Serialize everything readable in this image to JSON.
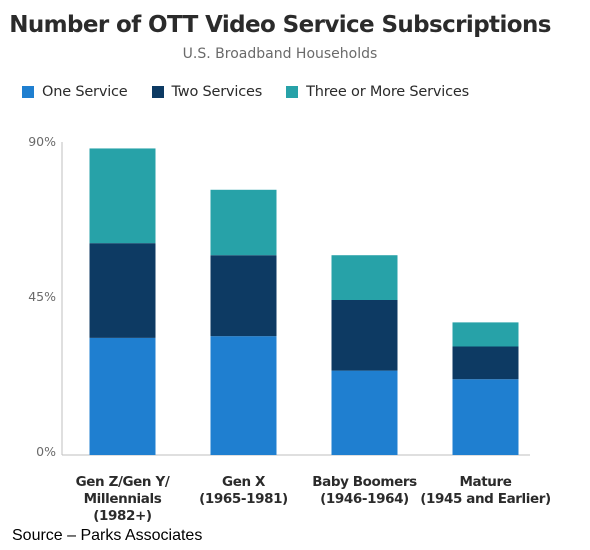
{
  "title": "Number of OTT Video Service Subscriptions",
  "subtitle": "U.S. Broadband Households",
  "source": "Source – Parks Associates",
  "colors": {
    "one": "#1f7fd0",
    "two": "#0d3a63",
    "three": "#27a2a8",
    "axis": "#bfbfbf",
    "text": "#2b2b2b"
  },
  "chart_data": {
    "type": "bar",
    "stacked": true,
    "categories": [
      [
        "Gen Z/Gen Y/",
        "Millennials",
        "(1982+)"
      ],
      [
        "Gen X",
        "(1965-1981)"
      ],
      [
        "Baby Boomers",
        "(1946-1964)"
      ],
      [
        "Mature",
        "(1945 and Earlier)"
      ]
    ],
    "series": [
      {
        "name": "One Service",
        "values": [
          34,
          34.5,
          24.5,
          22
        ]
      },
      {
        "name": "Two Services",
        "values": [
          27.5,
          23.5,
          20.5,
          9.5
        ]
      },
      {
        "name": "Three or More Services",
        "values": [
          27.5,
          19,
          13,
          7
        ]
      }
    ],
    "yticks": [
      "0%",
      "45%",
      "90%"
    ],
    "ylim": [
      0,
      90
    ],
    "grid": false,
    "legend_position": "top"
  }
}
